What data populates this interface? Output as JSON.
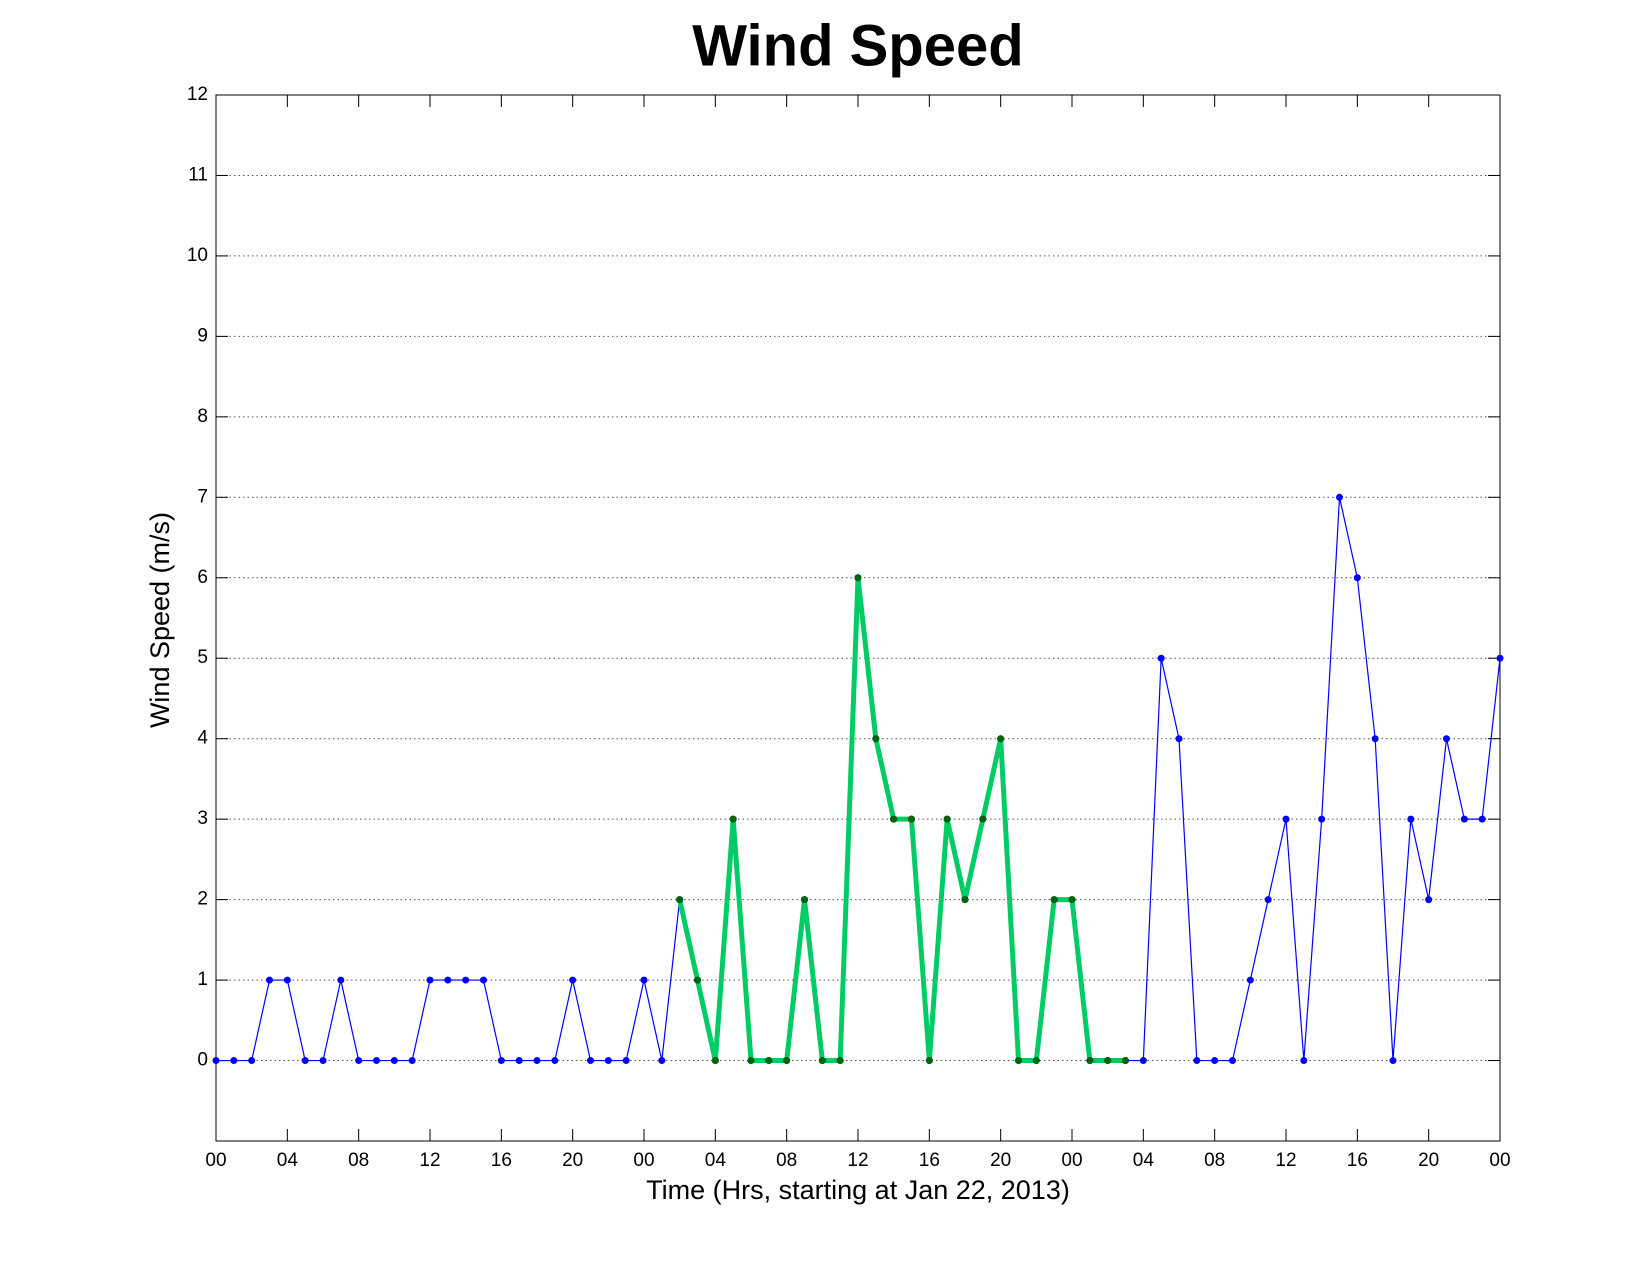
{
  "chart_data": {
    "type": "line",
    "title": "Wind Speed",
    "xlabel": "Time (Hrs, starting at Jan 22, 2013)",
    "ylabel": "Wind Speed (m/s)",
    "x": [
      0,
      1,
      2,
      3,
      4,
      5,
      6,
      7,
      8,
      9,
      10,
      11,
      12,
      13,
      14,
      15,
      16,
      17,
      18,
      19,
      20,
      21,
      22,
      23,
      24,
      25,
      26,
      27,
      28,
      29,
      30,
      31,
      32,
      33,
      34,
      35,
      36,
      37,
      38,
      39,
      40,
      41,
      42,
      43,
      44,
      45,
      46,
      47,
      48,
      49,
      50,
      51,
      52,
      53,
      54,
      55,
      56,
      57,
      58,
      59,
      60,
      61,
      62,
      63,
      64,
      65,
      66,
      67,
      68,
      69,
      70,
      71,
      72
    ],
    "series": [
      {
        "color": "#0000ff",
        "marker_color": "#0000ff",
        "width": 1.2,
        "values": [
          0,
          0,
          0,
          1,
          1,
          0,
          0,
          1,
          0,
          0,
          0,
          0,
          1,
          1,
          1,
          1,
          0,
          0,
          0,
          0,
          1,
          0,
          0,
          0,
          1,
          0,
          2,
          1,
          0,
          3,
          0,
          0,
          0,
          2,
          0,
          0,
          6,
          4,
          3,
          3,
          0,
          3,
          2,
          3,
          4,
          0,
          0,
          2,
          2,
          0,
          0,
          0,
          0,
          5,
          4,
          0,
          0,
          0,
          1,
          2,
          3,
          0,
          3,
          7,
          6,
          4,
          0,
          3,
          2,
          4,
          3,
          3,
          5
        ]
      },
      {
        "color": "#00cc66",
        "marker_color": "#006400",
        "width": 5,
        "values": [
          null,
          null,
          null,
          null,
          null,
          null,
          null,
          null,
          null,
          null,
          null,
          null,
          null,
          null,
          null,
          null,
          null,
          null,
          null,
          null,
          null,
          null,
          null,
          null,
          null,
          null,
          2,
          1,
          0,
          3,
          0,
          0,
          0,
          2,
          0,
          0,
          6,
          4,
          3,
          3,
          0,
          3,
          2,
          3,
          4,
          0,
          0,
          2,
          2,
          0,
          0,
          0,
          null,
          null,
          null,
          null,
          null,
          null,
          null,
          null,
          null,
          null,
          null,
          null,
          null,
          null,
          null,
          null,
          null,
          null,
          null,
          null,
          null
        ]
      }
    ],
    "xlim": [
      0,
      72
    ],
    "xticks": [
      {
        "value": 0,
        "label": "00"
      },
      {
        "value": 4,
        "label": "04"
      },
      {
        "value": 8,
        "label": "08"
      },
      {
        "value": 12,
        "label": "12"
      },
      {
        "value": 16,
        "label": "16"
      },
      {
        "value": 20,
        "label": "20"
      },
      {
        "value": 24,
        "label": "00"
      },
      {
        "value": 28,
        "label": "04"
      },
      {
        "value": 32,
        "label": "08"
      },
      {
        "value": 36,
        "label": "12"
      },
      {
        "value": 40,
        "label": "16"
      },
      {
        "value": 44,
        "label": "20"
      },
      {
        "value": 48,
        "label": "00"
      },
      {
        "value": 52,
        "label": "04"
      },
      {
        "value": 56,
        "label": "08"
      },
      {
        "value": 60,
        "label": "12"
      },
      {
        "value": 64,
        "label": "16"
      },
      {
        "value": 68,
        "label": "20"
      },
      {
        "value": 72,
        "label": "00"
      }
    ],
    "ylim": [
      -1,
      12
    ],
    "yticks": [
      0,
      1,
      2,
      3,
      4,
      5,
      6,
      7,
      8,
      9,
      10,
      11,
      12
    ],
    "grid": true
  }
}
